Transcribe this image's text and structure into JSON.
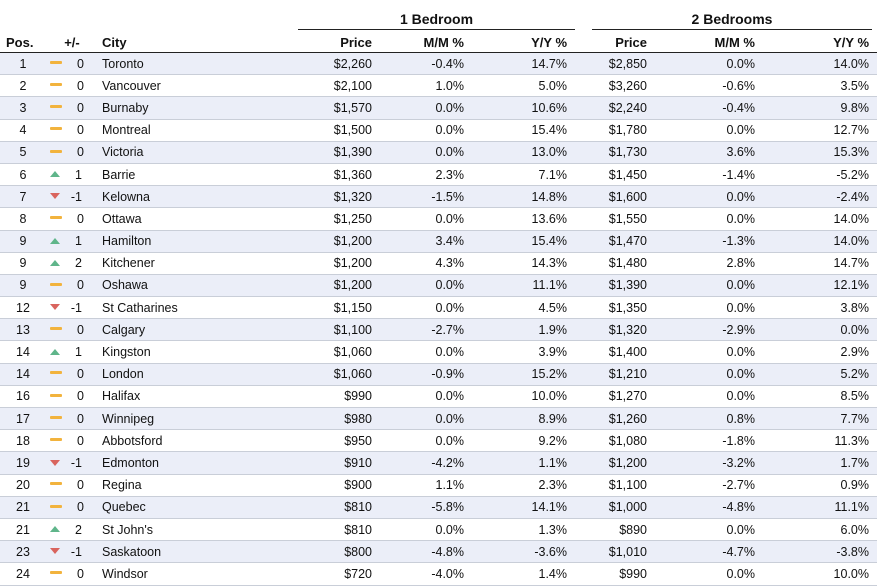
{
  "groups": {
    "one_bed": "1 Bedroom",
    "two_bed": "2 Bedrooms"
  },
  "columns": {
    "pos": "Pos.",
    "change": "+/-",
    "city": "City",
    "price1": "Price",
    "mm1": "M/M %",
    "yy1": "Y/Y %",
    "price2": "Price",
    "mm2": "M/M %",
    "yy2": "Y/Y %"
  },
  "rows": [
    {
      "pos": "1",
      "trend": "flat",
      "chg": "0",
      "city": "Toronto",
      "p1": "$2,260",
      "m1": "-0.4%",
      "y1": "14.7%",
      "p2": "$2,850",
      "m2": "0.0%",
      "y2": "14.0%"
    },
    {
      "pos": "2",
      "trend": "flat",
      "chg": "0",
      "city": "Vancouver",
      "p1": "$2,100",
      "m1": "1.0%",
      "y1": "5.0%",
      "p2": "$3,260",
      "m2": "-0.6%",
      "y2": "3.5%"
    },
    {
      "pos": "3",
      "trend": "flat",
      "chg": "0",
      "city": "Burnaby",
      "p1": "$1,570",
      "m1": "0.0%",
      "y1": "10.6%",
      "p2": "$2,240",
      "m2": "-0.4%",
      "y2": "9.8%"
    },
    {
      "pos": "4",
      "trend": "flat",
      "chg": "0",
      "city": "Montreal",
      "p1": "$1,500",
      "m1": "0.0%",
      "y1": "15.4%",
      "p2": "$1,780",
      "m2": "0.0%",
      "y2": "12.7%"
    },
    {
      "pos": "5",
      "trend": "flat",
      "chg": "0",
      "city": "Victoria",
      "p1": "$1,390",
      "m1": "0.0%",
      "y1": "13.0%",
      "p2": "$1,730",
      "m2": "3.6%",
      "y2": "15.3%"
    },
    {
      "pos": "6",
      "trend": "up",
      "chg": "1",
      "city": "Barrie",
      "p1": "$1,360",
      "m1": "2.3%",
      "y1": "7.1%",
      "p2": "$1,450",
      "m2": "-1.4%",
      "y2": "-5.2%"
    },
    {
      "pos": "7",
      "trend": "down",
      "chg": "-1",
      "city": "Kelowna",
      "p1": "$1,320",
      "m1": "-1.5%",
      "y1": "14.8%",
      "p2": "$1,600",
      "m2": "0.0%",
      "y2": "-2.4%"
    },
    {
      "pos": "8",
      "trend": "flat",
      "chg": "0",
      "city": "Ottawa",
      "p1": "$1,250",
      "m1": "0.0%",
      "y1": "13.6%",
      "p2": "$1,550",
      "m2": "0.0%",
      "y2": "14.0%"
    },
    {
      "pos": "9",
      "trend": "up",
      "chg": "1",
      "city": "Hamilton",
      "p1": "$1,200",
      "m1": "3.4%",
      "y1": "15.4%",
      "p2": "$1,470",
      "m2": "-1.3%",
      "y2": "14.0%"
    },
    {
      "pos": "9",
      "trend": "up",
      "chg": "2",
      "city": "Kitchener",
      "p1": "$1,200",
      "m1": "4.3%",
      "y1": "14.3%",
      "p2": "$1,480",
      "m2": "2.8%",
      "y2": "14.7%"
    },
    {
      "pos": "9",
      "trend": "flat",
      "chg": "0",
      "city": "Oshawa",
      "p1": "$1,200",
      "m1": "0.0%",
      "y1": "11.1%",
      "p2": "$1,390",
      "m2": "0.0%",
      "y2": "12.1%"
    },
    {
      "pos": "12",
      "trend": "down",
      "chg": "-1",
      "city": "St Catharines",
      "p1": "$1,150",
      "m1": "0.0%",
      "y1": "4.5%",
      "p2": "$1,350",
      "m2": "0.0%",
      "y2": "3.8%"
    },
    {
      "pos": "13",
      "trend": "flat",
      "chg": "0",
      "city": "Calgary",
      "p1": "$1,100",
      "m1": "-2.7%",
      "y1": "1.9%",
      "p2": "$1,320",
      "m2": "-2.9%",
      "y2": "0.0%"
    },
    {
      "pos": "14",
      "trend": "up",
      "chg": "1",
      "city": "Kingston",
      "p1": "$1,060",
      "m1": "0.0%",
      "y1": "3.9%",
      "p2": "$1,400",
      "m2": "0.0%",
      "y2": "2.9%"
    },
    {
      "pos": "14",
      "trend": "flat",
      "chg": "0",
      "city": "London",
      "p1": "$1,060",
      "m1": "-0.9%",
      "y1": "15.2%",
      "p2": "$1,210",
      "m2": "0.0%",
      "y2": "5.2%"
    },
    {
      "pos": "16",
      "trend": "flat",
      "chg": "0",
      "city": "Halifax",
      "p1": "$990",
      "m1": "0.0%",
      "y1": "10.0%",
      "p2": "$1,270",
      "m2": "0.0%",
      "y2": "8.5%"
    },
    {
      "pos": "17",
      "trend": "flat",
      "chg": "0",
      "city": "Winnipeg",
      "p1": "$980",
      "m1": "0.0%",
      "y1": "8.9%",
      "p2": "$1,260",
      "m2": "0.8%",
      "y2": "7.7%"
    },
    {
      "pos": "18",
      "trend": "flat",
      "chg": "0",
      "city": "Abbotsford",
      "p1": "$950",
      "m1": "0.0%",
      "y1": "9.2%",
      "p2": "$1,080",
      "m2": "-1.8%",
      "y2": "11.3%"
    },
    {
      "pos": "19",
      "trend": "down",
      "chg": "-1",
      "city": "Edmonton",
      "p1": "$910",
      "m1": "-4.2%",
      "y1": "1.1%",
      "p2": "$1,200",
      "m2": "-3.2%",
      "y2": "1.7%"
    },
    {
      "pos": "20",
      "trend": "flat",
      "chg": "0",
      "city": "Regina",
      "p1": "$900",
      "m1": "1.1%",
      "y1": "2.3%",
      "p2": "$1,100",
      "m2": "-2.7%",
      "y2": "0.9%"
    },
    {
      "pos": "21",
      "trend": "flat",
      "chg": "0",
      "city": "Quebec",
      "p1": "$810",
      "m1": "-5.8%",
      "y1": "14.1%",
      "p2": "$1,000",
      "m2": "-4.8%",
      "y2": "11.1%"
    },
    {
      "pos": "21",
      "trend": "up",
      "chg": "2",
      "city": "St John's",
      "p1": "$810",
      "m1": "0.0%",
      "y1": "1.3%",
      "p2": "$890",
      "m2": "0.0%",
      "y2": "6.0%"
    },
    {
      "pos": "23",
      "trend": "down",
      "chg": "-1",
      "city": "Saskatoon",
      "p1": "$800",
      "m1": "-4.8%",
      "y1": "-3.6%",
      "p2": "$1,010",
      "m2": "-4.7%",
      "y2": "-3.8%"
    },
    {
      "pos": "24",
      "trend": "flat",
      "chg": "0",
      "city": "Windsor",
      "p1": "$720",
      "m1": "-4.0%",
      "y1": "1.4%",
      "p2": "$990",
      "m2": "0.0%",
      "y2": "10.0%"
    }
  ],
  "colors": {
    "up": "#5fb58a",
    "down": "#d9645e",
    "flat": "#f2b33d",
    "stripe": "#ebeef8"
  }
}
